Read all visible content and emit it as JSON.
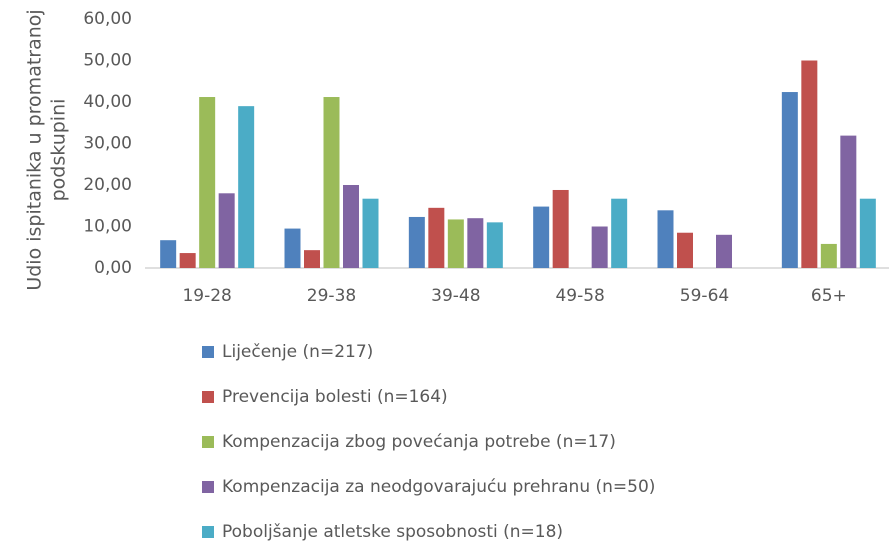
{
  "chart_data": {
    "type": "bar",
    "ylabel": [
      "Udio ispitanika u promatranoj",
      "podskupini"
    ],
    "categories": [
      "19-28",
      "29-38",
      "39-48",
      "49-58",
      "59-64",
      "65+"
    ],
    "series": [
      {
        "name": "Liječenje (n=217)",
        "color": "#4f81bd",
        "values": [
          6.7,
          9.5,
          12.3,
          14.8,
          13.9,
          42.4
        ]
      },
      {
        "name": "Prevencija bolesti (n=164)",
        "color": "#c0504d",
        "values": [
          3.6,
          4.3,
          14.5,
          18.8,
          8.5,
          50
        ]
      },
      {
        "name": "Kompenzacija zbog povećanja potrebe (n=17)",
        "color": "#9bbb59",
        "values": [
          41.2,
          41.2,
          11.7,
          0,
          0,
          5.8
        ]
      },
      {
        "name": "Kompenzacija za neodgovarajuću prehranu (n=50)",
        "color": "#8064a2",
        "values": [
          18,
          20,
          12,
          10,
          8,
          31.9
        ]
      },
      {
        "name": "Poboljšanje atletske sposobnosti (n=18)",
        "color": "#4bacc6",
        "values": [
          39,
          16.7,
          11,
          16.7,
          0,
          16.7
        ]
      }
    ],
    "ylim": [
      0,
      60
    ],
    "yticks": [
      {
        "value": 0,
        "label": "0,00"
      },
      {
        "value": 10,
        "label": "10,00"
      },
      {
        "value": 20,
        "label": "20,00"
      },
      {
        "value": 30,
        "label": "30,00"
      },
      {
        "value": 40,
        "label": "40,00"
      },
      {
        "value": 50,
        "label": "50,00"
      },
      {
        "value": 60,
        "label": "60,00"
      }
    ],
    "grid": false,
    "legend": "bottom"
  }
}
